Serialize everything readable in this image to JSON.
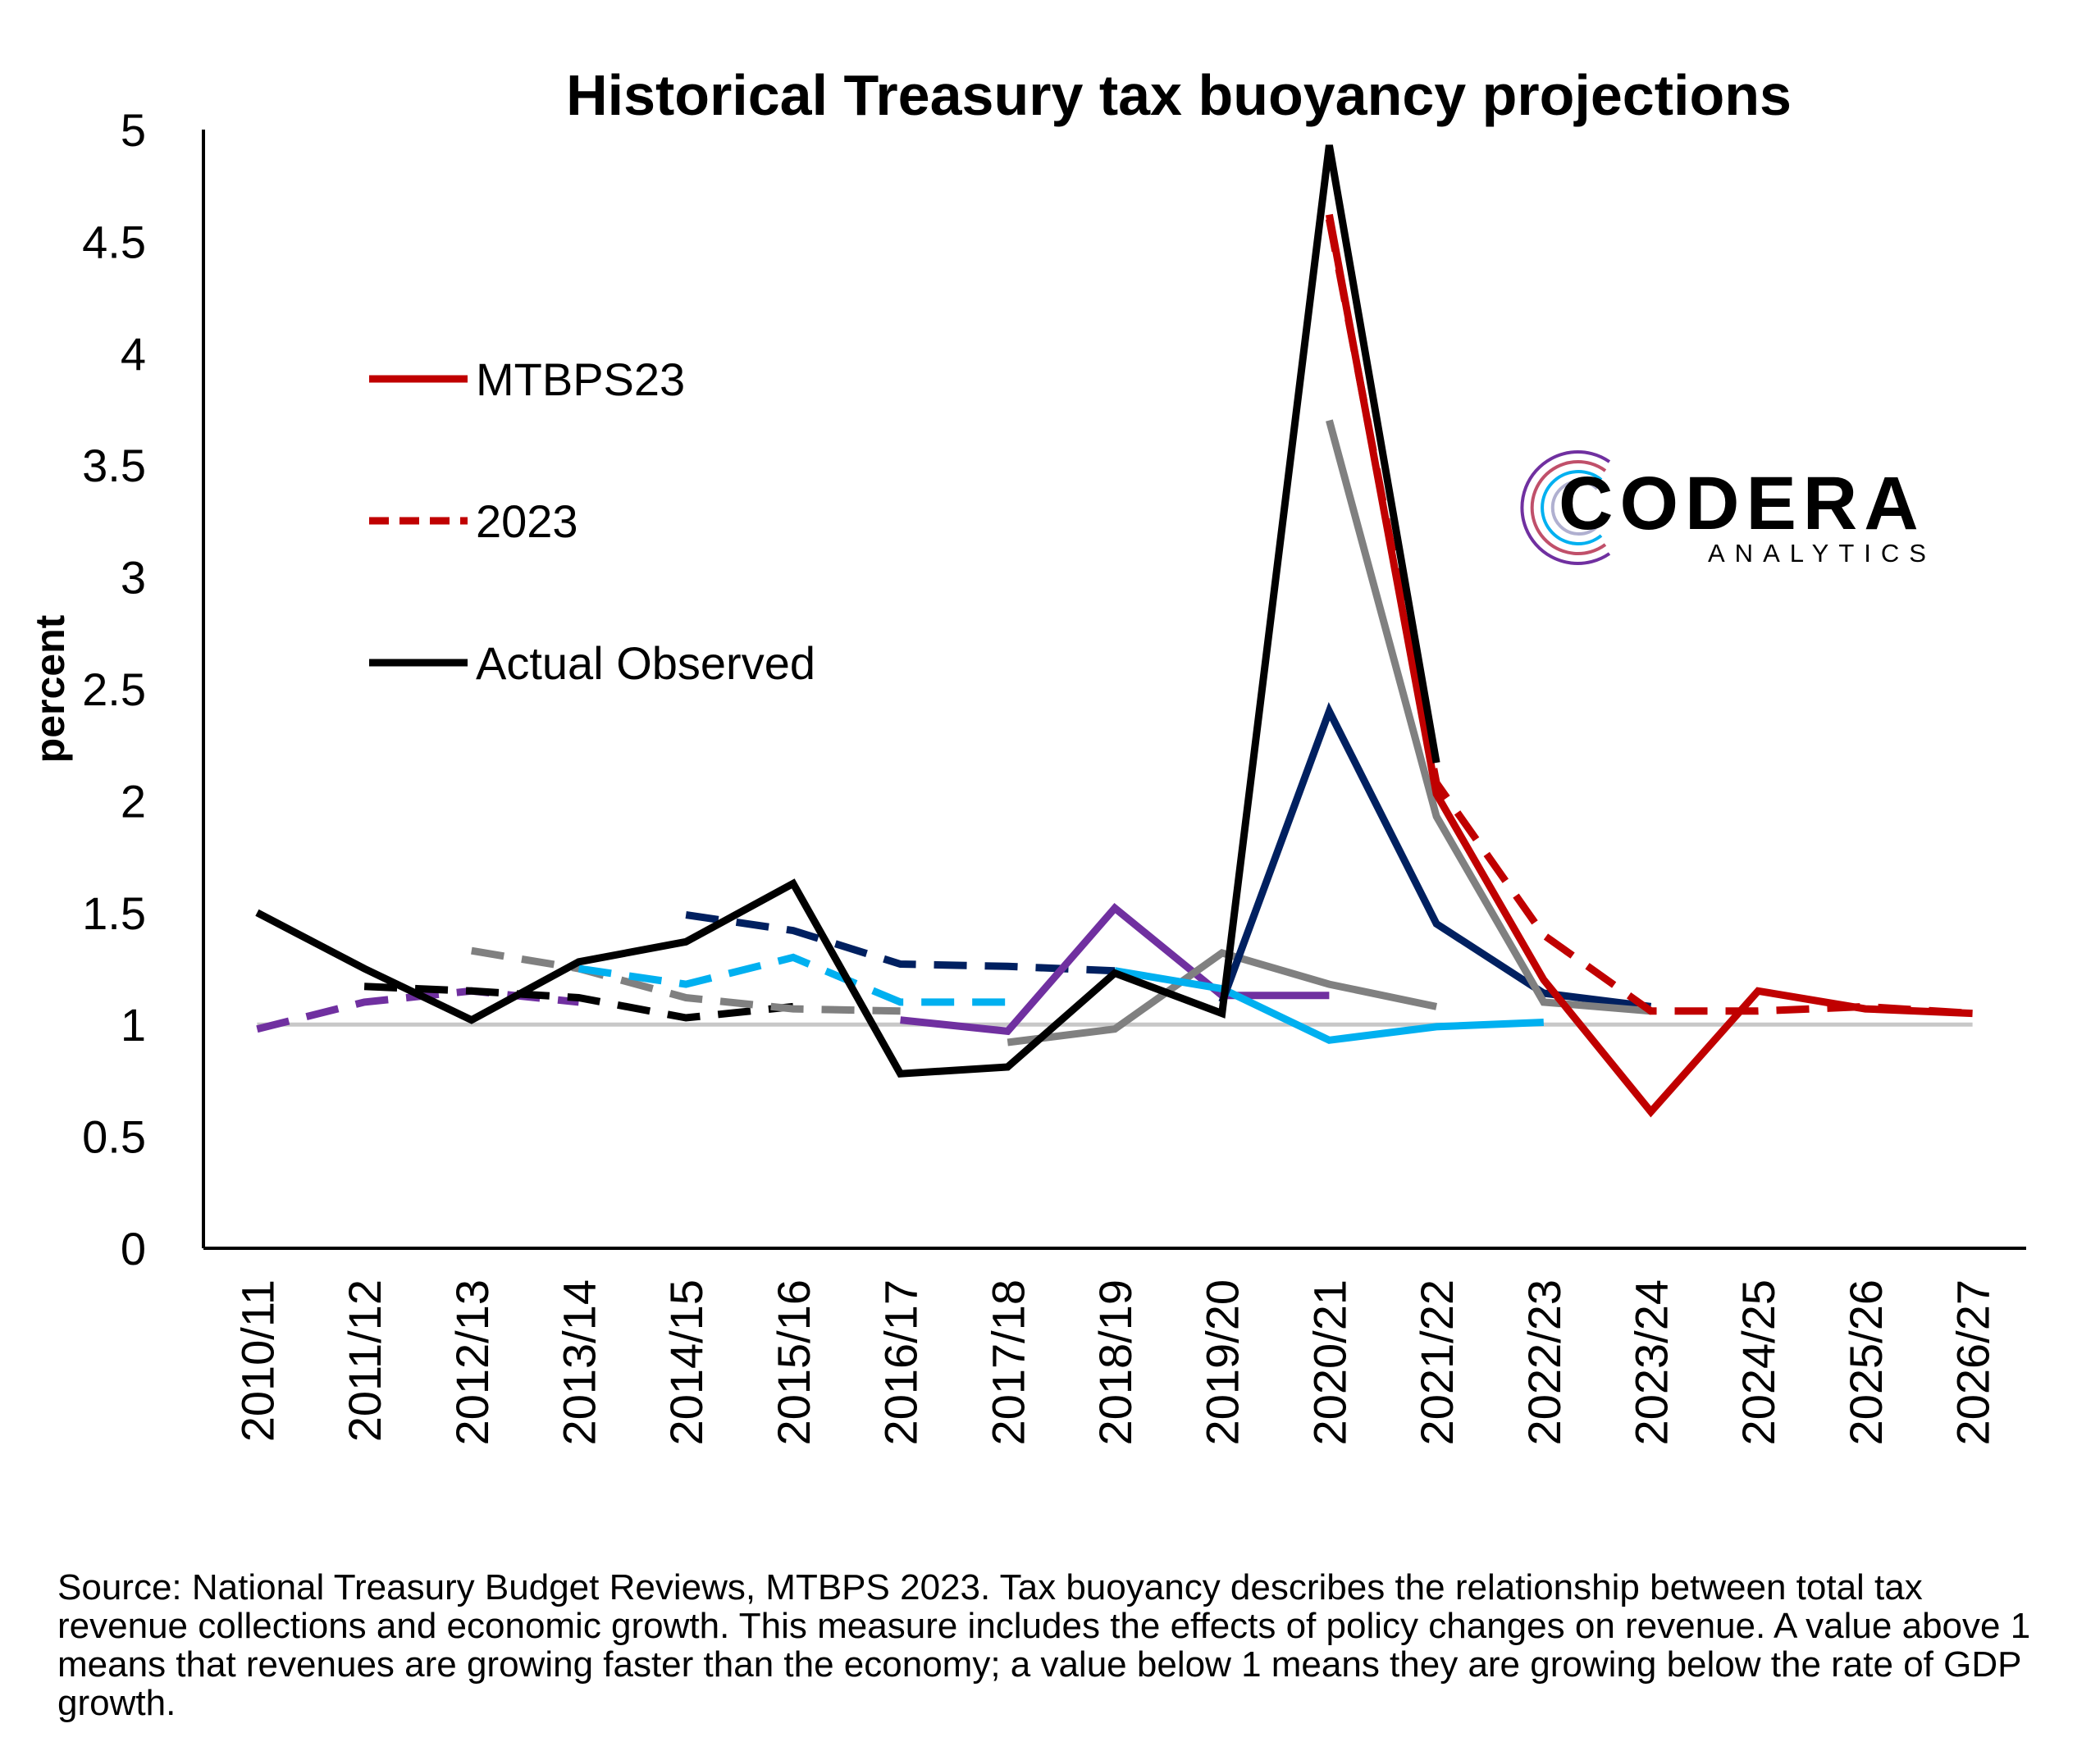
{
  "chart_data": {
    "type": "line",
    "title": "Historical Treasury tax buoyancy projections",
    "ylabel": "percent",
    "xlabel": "",
    "ylim": [
      0,
      5
    ],
    "yticks": [
      "0",
      "0.5",
      "1",
      "1.5",
      "2",
      "2.5",
      "3",
      "3.5",
      "4",
      "4.5",
      "5"
    ],
    "categories": [
      "2010/11",
      "2011/12",
      "2012/13",
      "2013/14",
      "2014/15",
      "2015/16",
      "2016/17",
      "2017/18",
      "2018/19",
      "2019/20",
      "2020/21",
      "2021/22",
      "2022/23",
      "2023/24",
      "2024/25",
      "2025/26",
      "2026/27"
    ],
    "legend": {
      "position": "top-left",
      "entries": [
        {
          "label": "MTBPS23",
          "color": "#c00000",
          "style": "solid"
        },
        {
          "label": "2023",
          "color": "#c00000",
          "style": "dashed"
        },
        {
          "label": "Actual Observed",
          "color": "#000000",
          "style": "solid"
        }
      ]
    },
    "series": [
      {
        "color": "#c8c8c8",
        "style": "solid",
        "values": [
          1,
          1,
          1,
          1,
          1,
          1,
          1,
          1,
          1,
          1,
          1,
          1,
          1,
          1,
          1,
          1,
          1
        ]
      },
      {
        "color": "#7030a0",
        "style": "dashed",
        "values": [
          0.98,
          1.1,
          1.15,
          1.1,
          null,
          null,
          null,
          null,
          null,
          null,
          null,
          null,
          null,
          null,
          null,
          null,
          null
        ]
      },
      {
        "color": "#000000",
        "style": "dashed",
        "values": [
          null,
          1.17,
          1.15,
          1.12,
          1.03,
          1.08,
          null,
          null,
          null,
          null,
          null,
          null,
          null,
          null,
          null,
          null,
          null
        ]
      },
      {
        "color": "#808080",
        "style": "dashed",
        "values": [
          null,
          null,
          1.33,
          1.25,
          1.12,
          1.07,
          1.06,
          null,
          null,
          null,
          null,
          null,
          null,
          null,
          null,
          null,
          null
        ]
      },
      {
        "color": "#00b0f0",
        "style": "dashed",
        "values": [
          null,
          null,
          null,
          1.25,
          1.18,
          1.3,
          1.1,
          1.1,
          null,
          null,
          null,
          null,
          null,
          null,
          null,
          null,
          null
        ]
      },
      {
        "color": "#002060",
        "style": "dashed",
        "values": [
          null,
          null,
          null,
          null,
          1.49,
          1.42,
          1.27,
          1.26,
          1.24,
          null,
          null,
          null,
          null,
          null,
          null,
          null,
          null
        ]
      },
      {
        "color": "#7030a0",
        "style": "solid",
        "values": [
          null,
          null,
          null,
          null,
          null,
          null,
          1.02,
          0.97,
          1.52,
          1.13,
          1.13,
          null,
          null,
          null,
          null,
          null,
          null
        ]
      },
      {
        "color": "#808080",
        "style": "solid",
        "values": [
          null,
          null,
          null,
          null,
          null,
          null,
          null,
          0.92,
          0.98,
          1.32,
          1.18,
          1.08,
          null,
          null,
          null,
          null,
          null
        ]
      },
      {
        "color": "#00b0f0",
        "style": "solid",
        "values": [
          null,
          null,
          null,
          null,
          null,
          null,
          null,
          null,
          1.24,
          1.16,
          0.93,
          0.99,
          1.01,
          null,
          null,
          null,
          null
        ]
      },
      {
        "color": "#002060",
        "style": "solid",
        "values": [
          null,
          null,
          null,
          null,
          null,
          null,
          null,
          null,
          null,
          1.1,
          2.4,
          1.45,
          1.14,
          1.08,
          null,
          null,
          null
        ]
      },
      {
        "color": "#808080",
        "style": "solid",
        "values": [
          null,
          null,
          null,
          null,
          null,
          null,
          null,
          null,
          null,
          null,
          3.7,
          1.93,
          1.1,
          1.06,
          null,
          null,
          null
        ]
      },
      {
        "name": "2023",
        "color": "#c00000",
        "style": "dashed",
        "values": [
          null,
          null,
          null,
          null,
          null,
          null,
          null,
          null,
          null,
          null,
          4.6,
          2.08,
          1.4,
          1.06,
          1.06,
          1.08,
          1.05
        ]
      },
      {
        "name": "MTBPS23",
        "color": "#c00000",
        "style": "solid",
        "values": [
          null,
          null,
          null,
          null,
          null,
          null,
          null,
          null,
          null,
          null,
          4.62,
          2.03,
          1.2,
          0.61,
          1.15,
          1.07,
          1.05
        ]
      },
      {
        "name": "Actual Observed",
        "color": "#000000",
        "style": "solid",
        "values": [
          1.5,
          1.25,
          1.02,
          1.28,
          1.37,
          1.63,
          0.78,
          0.81,
          1.23,
          1.05,
          4.93,
          2.17,
          null,
          null,
          null,
          null,
          null
        ]
      }
    ]
  },
  "logo": {
    "main": "CODERA",
    "sub": "ANALYTICS",
    "main_color": "#111111",
    "sub_color": "#c0506a"
  },
  "source_note": "Source: National Treasury Budget Reviews, MTBPS 2023. Tax buoyancy describes the relationship between total tax revenue collections and economic growth. This measure includes the effects of policy changes on revenue. A value above 1 means that revenues are growing faster than the economy; a value below 1 means they are growing below the rate of GDP growth."
}
